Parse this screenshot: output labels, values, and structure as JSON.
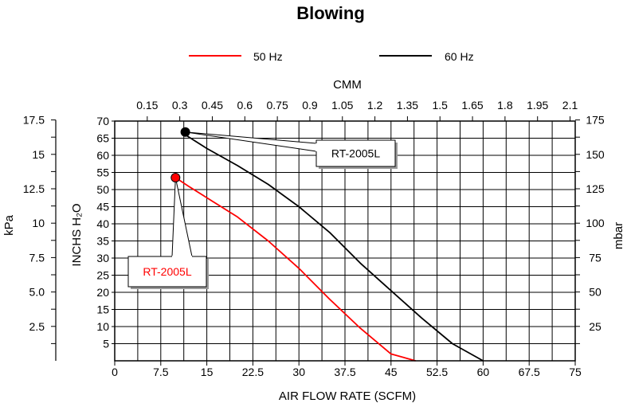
{
  "chart_data": {
    "type": "line",
    "title": "Blowing",
    "xlabel": "AIR FLOW RATE (SCFM)",
    "ylabel": "INCHS H₂O",
    "x2label": "CMM",
    "y2label_left": "kPa",
    "y2label_right": "mbar",
    "xlim": [
      0,
      75
    ],
    "ylim": [
      0,
      70
    ],
    "grid": true,
    "legend_position": "top",
    "x_ticks": [
      "0",
      "7.5",
      "15",
      "22.5",
      "30",
      "37.5",
      "45",
      "52.5",
      "60",
      "67.5",
      "75"
    ],
    "x_tick_values": [
      0,
      7.5,
      15,
      22.5,
      30,
      37.5,
      45,
      52.5,
      60,
      67.5,
      75
    ],
    "cmm_ticks": [
      "0.15",
      "0.3",
      "0.45",
      "0.6",
      "0.75",
      "0.9",
      "1.05",
      "1.2",
      "1.35",
      "1.5",
      "1.65",
      "1.8",
      "1.95",
      "2.1"
    ],
    "cmm_tick_values": [
      0.15,
      0.3,
      0.45,
      0.6,
      0.75,
      0.9,
      1.05,
      1.2,
      1.35,
      1.5,
      1.65,
      1.8,
      1.95,
      2.1
    ],
    "y_ticks": [
      "5",
      "10",
      "15",
      "20",
      "25",
      "30",
      "35",
      "40",
      "45",
      "50",
      "55",
      "60",
      "65",
      "70"
    ],
    "y_tick_values": [
      5,
      10,
      15,
      20,
      25,
      30,
      35,
      40,
      45,
      50,
      55,
      60,
      65,
      70
    ],
    "kpa_ticks": [
      "2.5",
      "5.0",
      "7.5",
      "10",
      "12.5",
      "15",
      "17.5"
    ],
    "kpa_tick_values": [
      2.5,
      5.0,
      7.5,
      10,
      12.5,
      15,
      17.5
    ],
    "mbar_ticks": [
      "25",
      "50",
      "75",
      "100",
      "125",
      "150",
      "175"
    ],
    "mbar_tick_values": [
      25,
      50,
      75,
      100,
      125,
      150,
      175
    ],
    "series": [
      {
        "name": "50 Hz",
        "color": "#ff0000",
        "x": [
          9.9,
          12,
          16,
          20,
          25,
          30,
          35,
          40,
          45,
          49
        ],
        "y": [
          53.5,
          51,
          46.5,
          42,
          35,
          27,
          18,
          9.5,
          2,
          0
        ]
      },
      {
        "name": "60 Hz",
        "color": "#000000",
        "x": [
          11.5,
          15,
          20,
          25,
          30,
          35,
          40,
          45,
          50,
          55,
          60
        ],
        "y": [
          66,
          62,
          57,
          51.5,
          45,
          37.5,
          28.5,
          20.5,
          12.5,
          5,
          0
        ]
      }
    ],
    "annotations": [
      {
        "text": "RT-2005L",
        "color": "#ff0000",
        "x": 9.9,
        "y": 53.5
      },
      {
        "text": "RT-2005L",
        "color": "#000000",
        "x": 11.5,
        "y": 66.8
      }
    ]
  }
}
